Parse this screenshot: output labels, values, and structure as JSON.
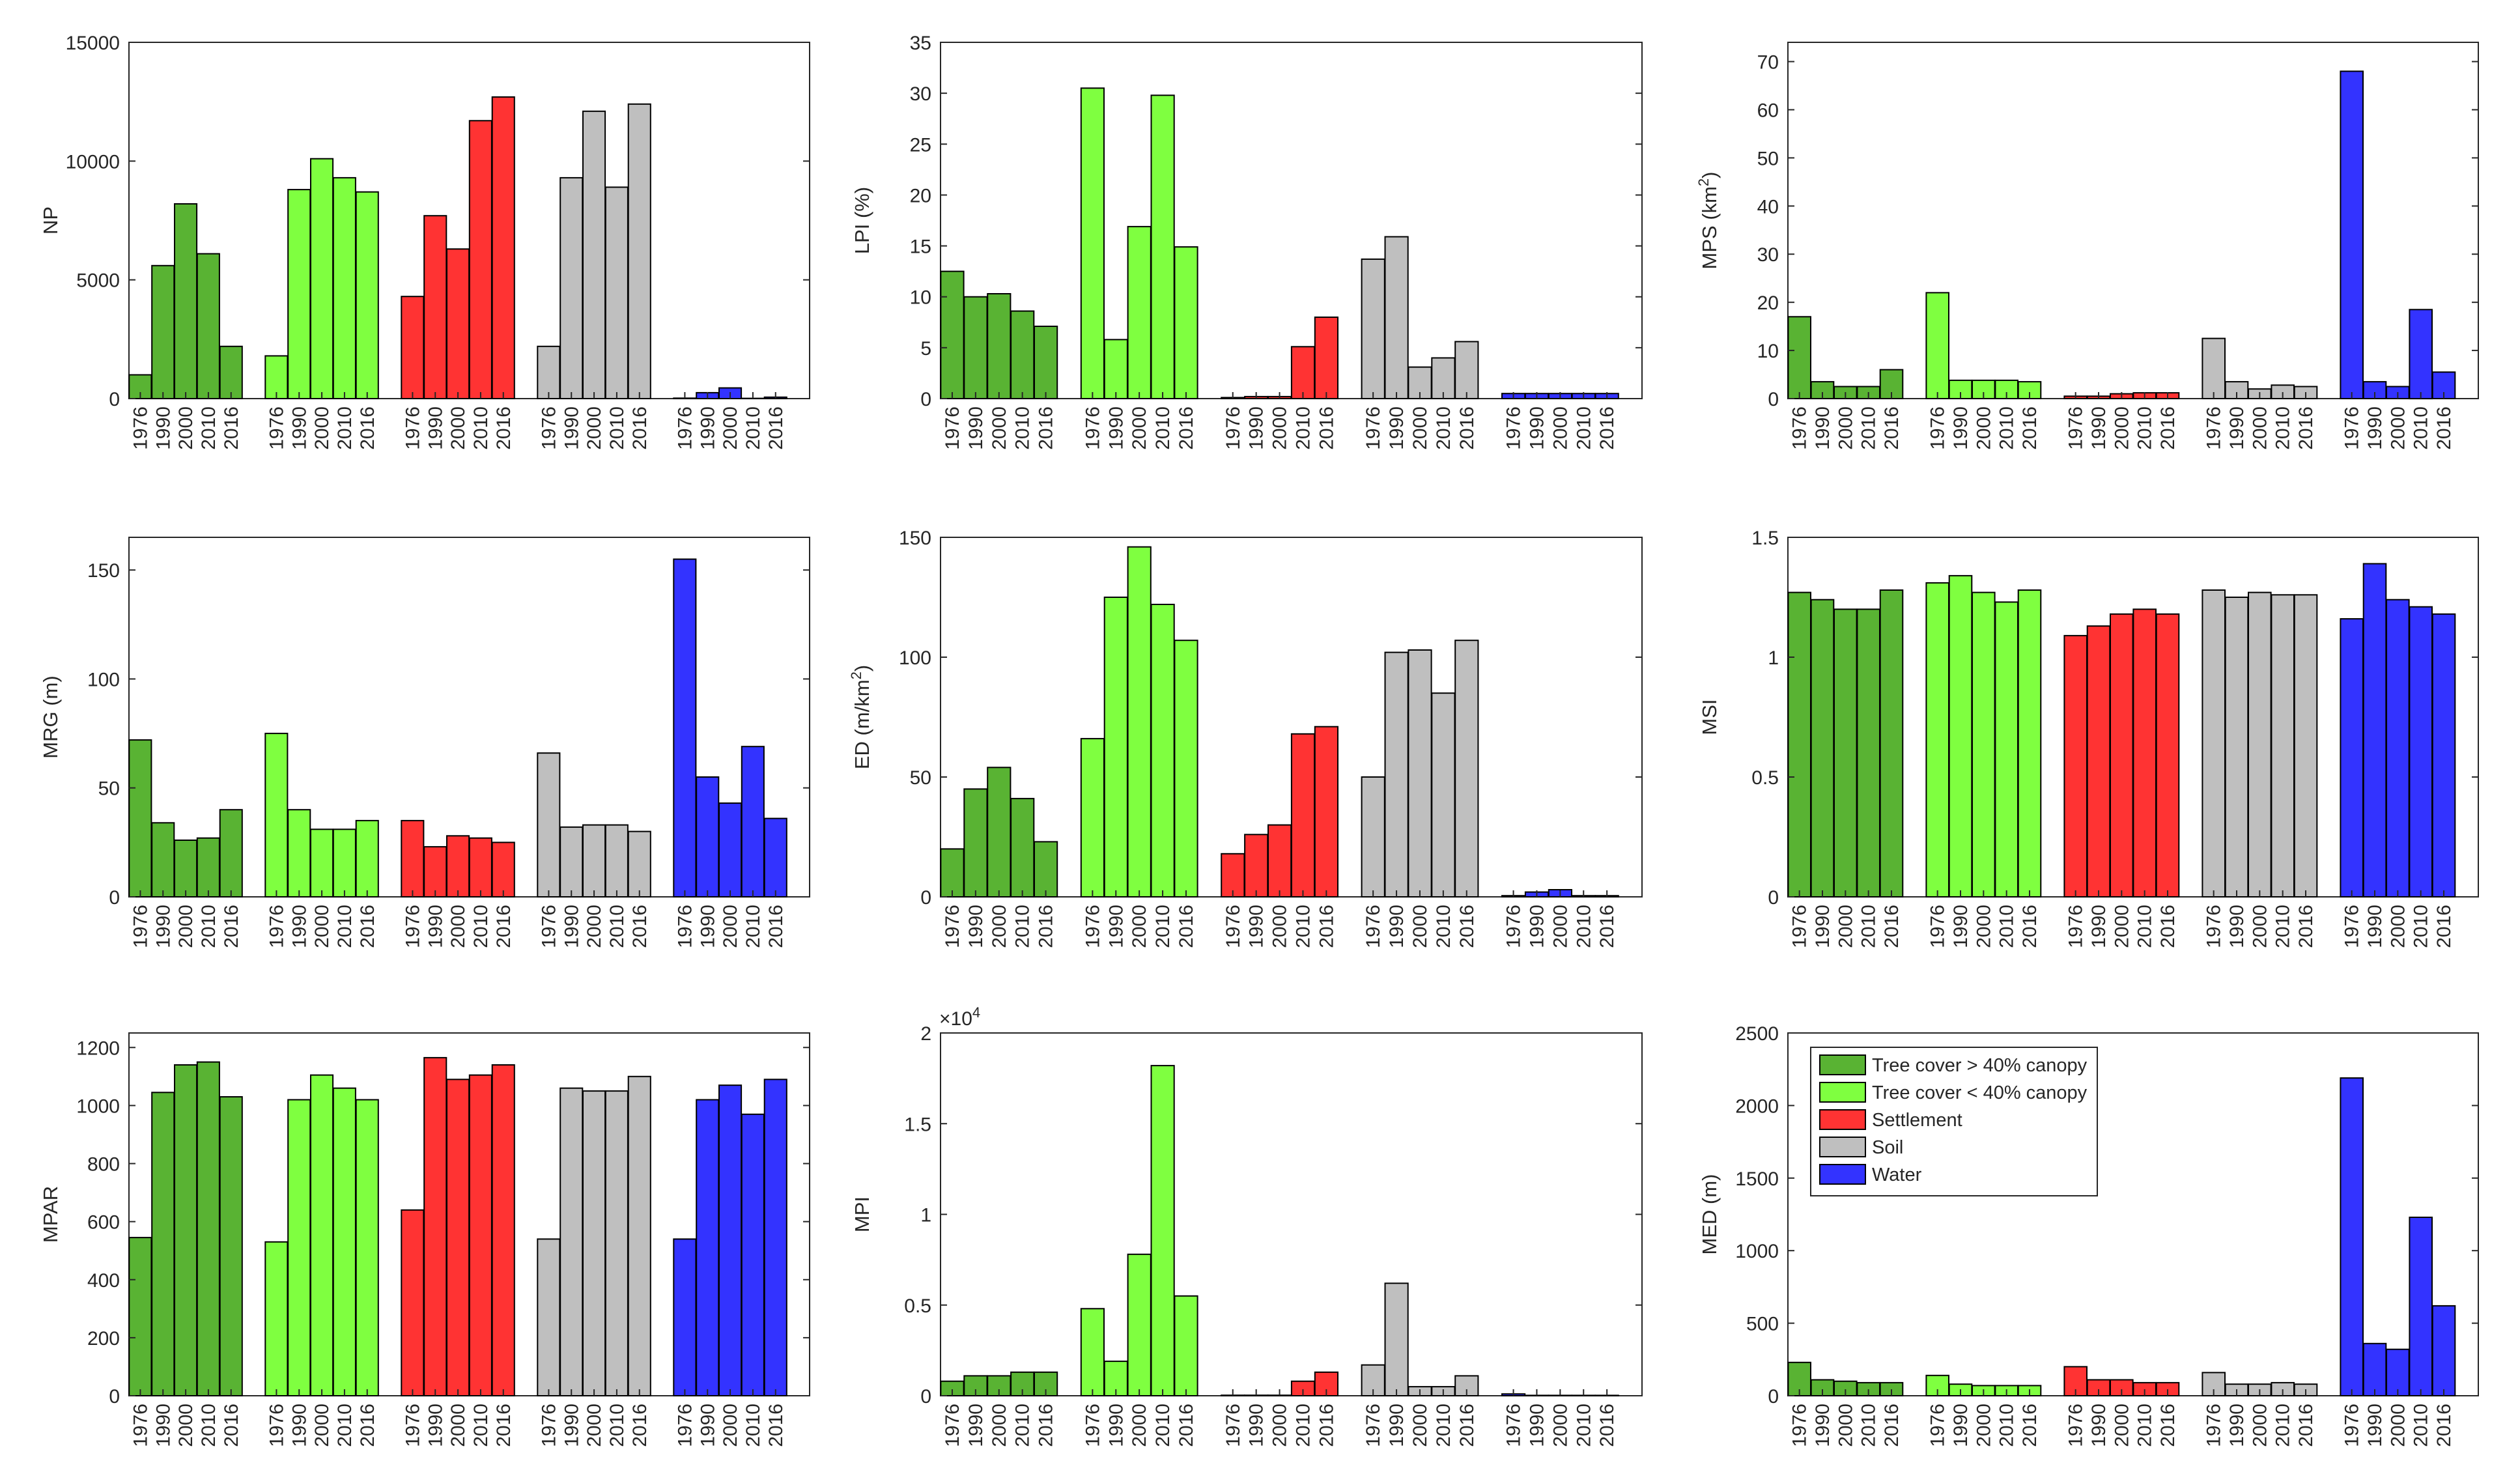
{
  "figure": {
    "class_colors": [
      "#59b333",
      "#7fff40",
      "#ff3333",
      "#bfbfbf",
      "#3333ff"
    ],
    "classes": [
      "Tree cover > 40% canopy",
      "Tree cover < 40% canopy",
      "Settlement",
      "Soil",
      "Water"
    ],
    "years": [
      "1976",
      "1990",
      "2000",
      "2010",
      "2016"
    ]
  },
  "chart_data": [
    {
      "type": "bar",
      "id": "np",
      "ylabel": "NP",
      "ylim": [
        0,
        15000
      ],
      "yticks": [
        0,
        5000,
        10000,
        15000
      ],
      "yticklabels": [
        "0",
        "5000",
        "10000",
        "15000"
      ],
      "series": [
        {
          "name": "Tree cover > 40% canopy",
          "values": [
            1000,
            5600,
            8200,
            6100,
            2200
          ]
        },
        {
          "name": "Tree cover < 40% canopy",
          "values": [
            1800,
            8800,
            10100,
            9300,
            8700
          ]
        },
        {
          "name": "Settlement",
          "values": [
            4300,
            7700,
            6300,
            11700,
            12700
          ]
        },
        {
          "name": "Soil",
          "values": [
            2200,
            9300,
            12100,
            8900,
            12400
          ]
        },
        {
          "name": "Water",
          "values": [
            20,
            250,
            450,
            10,
            60
          ]
        }
      ]
    },
    {
      "type": "bar",
      "id": "lpi",
      "ylabel": "LPI (%)",
      "ylim": [
        0,
        35
      ],
      "yticks": [
        0,
        5,
        10,
        15,
        20,
        25,
        30,
        35
      ],
      "yticklabels": [
        "0",
        "5",
        "10",
        "15",
        "20",
        "25",
        "30",
        "35"
      ],
      "series": [
        {
          "name": "Tree cover > 40% canopy",
          "values": [
            12.5,
            10,
            10.3,
            8.6,
            7.1
          ]
        },
        {
          "name": "Tree cover < 40% canopy",
          "values": [
            30.5,
            5.8,
            16.9,
            29.8,
            14.9
          ]
        },
        {
          "name": "Settlement",
          "values": [
            0.1,
            0.2,
            0.2,
            5.1,
            8
          ]
        },
        {
          "name": "Soil",
          "values": [
            13.7,
            15.9,
            3.1,
            4,
            5.6
          ]
        },
        {
          "name": "Water",
          "values": [
            0.5,
            0.5,
            0.5,
            0.5,
            0.5
          ]
        }
      ]
    },
    {
      "type": "bar",
      "id": "mps",
      "ylabel": "MPS (km²)",
      "ylabel_base": "MPS (km",
      "ylabel_sup": "2",
      "ylabel_end": ")",
      "ylim": [
        0,
        74
      ],
      "yticks": [
        0,
        10,
        20,
        30,
        40,
        50,
        60,
        70
      ],
      "yticklabels": [
        "0",
        "10",
        "20",
        "30",
        "40",
        "50",
        "60",
        "70"
      ],
      "series": [
        {
          "name": "Tree cover > 40% canopy",
          "values": [
            17,
            3.5,
            2.5,
            2.5,
            6
          ]
        },
        {
          "name": "Tree cover < 40% canopy",
          "values": [
            22,
            3.8,
            3.8,
            3.8,
            3.5
          ]
        },
        {
          "name": "Settlement",
          "values": [
            0.5,
            0.5,
            1,
            1.2,
            1.2
          ]
        },
        {
          "name": "Soil",
          "values": [
            12.5,
            3.5,
            2,
            2.8,
            2.5
          ]
        },
        {
          "name": "Water",
          "values": [
            68,
            3.5,
            2.5,
            18.5,
            5.5
          ]
        }
      ]
    },
    {
      "type": "bar",
      "id": "mrg",
      "ylabel": "MRG (m)",
      "ylim": [
        0,
        165
      ],
      "yticks": [
        0,
        50,
        100,
        150
      ],
      "yticklabels": [
        "0",
        "50",
        "100",
        "150"
      ],
      "series": [
        {
          "name": "Tree cover > 40% canopy",
          "values": [
            72,
            34,
            26,
            27,
            40
          ]
        },
        {
          "name": "Tree cover < 40% canopy",
          "values": [
            75,
            40,
            31,
            31,
            35
          ]
        },
        {
          "name": "Settlement",
          "values": [
            35,
            23,
            28,
            27,
            25
          ]
        },
        {
          "name": "Soil",
          "values": [
            66,
            32,
            33,
            33,
            30
          ]
        },
        {
          "name": "Water",
          "values": [
            155,
            55,
            43,
            69,
            36
          ]
        }
      ]
    },
    {
      "type": "bar",
      "id": "ed",
      "ylabel": "ED (m/km²)",
      "ylabel_base": "ED (m/km",
      "ylabel_sup": "2",
      "ylabel_end": ")",
      "ylim": [
        0,
        150
      ],
      "yticks": [
        0,
        50,
        100,
        150
      ],
      "yticklabels": [
        "0",
        "50",
        "100",
        "150"
      ],
      "series": [
        {
          "name": "Tree cover > 40% canopy",
          "values": [
            20,
            45,
            54,
            41,
            23
          ]
        },
        {
          "name": "Tree cover < 40% canopy",
          "values": [
            66,
            125,
            146,
            122,
            107
          ]
        },
        {
          "name": "Settlement",
          "values": [
            18,
            26,
            30,
            68,
            71
          ]
        },
        {
          "name": "Soil",
          "values": [
            50,
            102,
            103,
            85,
            107
          ]
        },
        {
          "name": "Water",
          "values": [
            0.5,
            2,
            3,
            0.5,
            0.5
          ]
        }
      ]
    },
    {
      "type": "bar",
      "id": "msi",
      "ylabel": "MSI",
      "ylim": [
        0,
        1.5
      ],
      "yticks": [
        0,
        0.5,
        1,
        1.5
      ],
      "yticklabels": [
        "0",
        "0.5",
        "1",
        "1.5"
      ],
      "series": [
        {
          "name": "Tree cover > 40% canopy",
          "values": [
            1.27,
            1.24,
            1.2,
            1.2,
            1.28
          ]
        },
        {
          "name": "Tree cover < 40% canopy",
          "values": [
            1.31,
            1.34,
            1.27,
            1.23,
            1.28
          ]
        },
        {
          "name": "Settlement",
          "values": [
            1.09,
            1.13,
            1.18,
            1.2,
            1.18
          ]
        },
        {
          "name": "Soil",
          "values": [
            1.28,
            1.25,
            1.27,
            1.26,
            1.26
          ]
        },
        {
          "name": "Water",
          "values": [
            1.16,
            1.39,
            1.24,
            1.21,
            1.18
          ]
        }
      ]
    },
    {
      "type": "bar",
      "id": "mpar",
      "ylabel": "MPAR",
      "ylim": [
        0,
        1250
      ],
      "yticks": [
        0,
        200,
        400,
        600,
        800,
        1000,
        1200
      ],
      "yticklabels": [
        "0",
        "200",
        "400",
        "600",
        "800",
        "1000",
        "1200"
      ],
      "series": [
        {
          "name": "Tree cover > 40% canopy",
          "values": [
            545,
            1045,
            1140,
            1150,
            1030
          ]
        },
        {
          "name": "Tree cover < 40% canopy",
          "values": [
            530,
            1020,
            1105,
            1060,
            1020
          ]
        },
        {
          "name": "Settlement",
          "values": [
            640,
            1165,
            1090,
            1105,
            1140
          ]
        },
        {
          "name": "Soil",
          "values": [
            540,
            1060,
            1050,
            1050,
            1100
          ]
        },
        {
          "name": "Water",
          "values": [
            540,
            1020,
            1070,
            970,
            1090
          ]
        }
      ]
    },
    {
      "type": "bar",
      "id": "mpi",
      "ylabel": "MPI",
      "exponent_label": "×10",
      "exponent_sup": "4",
      "ylim": [
        0,
        2
      ],
      "yticks": [
        0,
        0.5,
        1,
        1.5,
        2
      ],
      "yticklabels": [
        "0",
        "0.5",
        "1",
        "1.5",
        "2"
      ],
      "series": [
        {
          "name": "Tree cover > 40% canopy",
          "values": [
            0.08,
            0.11,
            0.11,
            0.13,
            0.13
          ]
        },
        {
          "name": "Tree cover < 40% canopy",
          "values": [
            0.48,
            0.19,
            0.78,
            1.82,
            0.55
          ]
        },
        {
          "name": "Settlement",
          "values": [
            0.003,
            0.003,
            0.003,
            0.08,
            0.13
          ]
        },
        {
          "name": "Soil",
          "values": [
            0.17,
            0.62,
            0.05,
            0.05,
            0.11
          ]
        },
        {
          "name": "Water",
          "values": [
            0.01,
            0.002,
            0.002,
            0.002,
            0.002
          ]
        }
      ]
    },
    {
      "type": "bar",
      "id": "med",
      "ylabel": "MED (m)",
      "ylim": [
        0,
        2500
      ],
      "yticks": [
        0,
        500,
        1000,
        1500,
        2000,
        2500
      ],
      "yticklabels": [
        "0",
        "500",
        "1000",
        "1500",
        "2000",
        "2500"
      ],
      "legend": "top-left",
      "series": [
        {
          "name": "Tree cover > 40% canopy",
          "values": [
            230,
            110,
            100,
            90,
            90
          ]
        },
        {
          "name": "Tree cover < 40% canopy",
          "values": [
            140,
            80,
            70,
            70,
            70
          ]
        },
        {
          "name": "Settlement",
          "values": [
            200,
            110,
            110,
            90,
            90
          ]
        },
        {
          "name": "Soil",
          "values": [
            160,
            80,
            80,
            90,
            80
          ]
        },
        {
          "name": "Water",
          "values": [
            2190,
            360,
            320,
            1230,
            620
          ]
        }
      ]
    }
  ]
}
